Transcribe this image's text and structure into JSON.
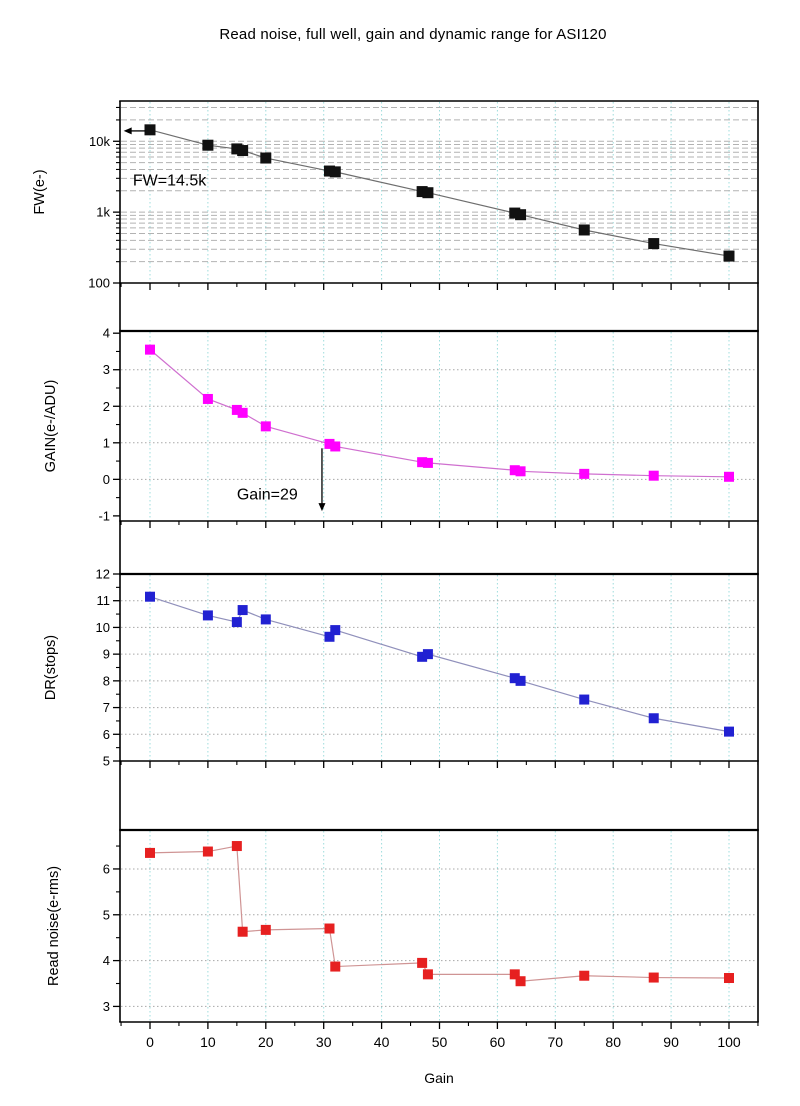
{
  "title": "Read noise, full well, gain and dynamic range for ASI120",
  "chart_data": {
    "type": "line",
    "xlabel": "Gain",
    "x_range": [
      -5.18,
      105.0
    ],
    "x_ticks": [
      0,
      10,
      20,
      30,
      40,
      50,
      60,
      70,
      80,
      90,
      100
    ],
    "x_tick_labels": [
      "0",
      "10",
      "20",
      "30",
      "40",
      "50",
      "60",
      "70",
      "80",
      "90",
      "100"
    ],
    "x_minor_ticks": [
      -5,
      5,
      15,
      25,
      35,
      45,
      55,
      65,
      75,
      85,
      95,
      105
    ],
    "x": [
      0,
      10,
      15,
      16,
      20,
      31,
      32,
      47,
      48,
      63,
      64,
      75,
      87,
      100
    ],
    "grid_v_color": "#9ddcdc",
    "panels": [
      {
        "id": "fw",
        "ylabel": "FW(e-)",
        "scale": "log",
        "y_range": [
          100,
          37000
        ],
        "y_ticks": [
          100,
          1000,
          10000
        ],
        "y_tick_labels": [
          "100",
          "1k",
          "10k"
        ],
        "y_minor_ticks": [
          200,
          300,
          400,
          500,
          600,
          700,
          800,
          900,
          2000,
          3000,
          4000,
          5000,
          6000,
          7000,
          8000,
          9000,
          20000,
          30000
        ],
        "h_grid": [
          200,
          300,
          400,
          500,
          600,
          700,
          800,
          900,
          1000,
          2000,
          3000,
          4000,
          5000,
          6000,
          7000,
          8000,
          9000,
          10000,
          20000,
          30000
        ],
        "h_grid_style": "dashed",
        "h_grid_color": "#b2b2b2",
        "series": {
          "name": "Full well (e-)",
          "marker_color": "#111111",
          "line_color": "#6e6e6e",
          "marker_size": 11,
          "values": [
            14500,
            8800,
            7800,
            7400,
            5800,
            3800,
            3700,
            1950,
            1880,
            970,
            920,
            560,
            360,
            240
          ]
        },
        "annotation": {
          "text": "FW=14.5k",
          "text_at_gain": -2.95,
          "text_at_value": 2800,
          "arrow": {
            "kind": "left",
            "at_value": 14000,
            "from_gain": -0.8,
            "to_gain": -4.55
          }
        }
      },
      {
        "id": "gain",
        "ylabel": "GAIN(e-/ADU)",
        "scale": "linear",
        "y_range": [
          -1.14,
          4.06
        ],
        "y_ticks": [
          -1,
          0,
          1,
          2,
          3,
          4
        ],
        "y_tick_labels": [
          "-1",
          "0",
          "1",
          "2",
          "3",
          "4"
        ],
        "y_minor_ticks": [
          -0.5,
          0.5,
          1.5,
          2.5,
          3.5
        ],
        "h_grid": [
          0,
          1,
          2,
          3
        ],
        "h_grid_style": "dotted",
        "h_grid_color": "#a8a8a8",
        "series": {
          "name": "Gain (e-/ADU)",
          "marker_color": "#ff00ff",
          "line_color": "#cf6fcf",
          "marker_size": 10,
          "values": [
            3.55,
            2.2,
            1.9,
            1.82,
            1.45,
            0.97,
            0.9,
            0.47,
            0.45,
            0.25,
            0.22,
            0.15,
            0.1,
            0.07
          ]
        },
        "annotation": {
          "text": "Gain=29",
          "text_at_gain": 15.0,
          "text_at_value": -0.42,
          "arrow": {
            "kind": "down",
            "at_gain": 29.7,
            "from_value": 0.85,
            "to_value": -0.87
          }
        }
      },
      {
        "id": "dr",
        "ylabel": "DR(stops)",
        "scale": "linear",
        "y_range": [
          5,
          12
        ],
        "y_ticks": [
          5,
          6,
          7,
          8,
          9,
          10,
          11,
          12
        ],
        "y_tick_labels": [
          "5",
          "6",
          "7",
          "8",
          "9",
          "10",
          "11",
          "12"
        ],
        "y_minor_ticks": [
          5.5,
          6.5,
          7.5,
          8.5,
          9.5,
          10.5,
          11.5
        ],
        "h_grid": [
          6,
          7,
          8,
          9,
          10,
          11
        ],
        "h_grid_style": "dotted",
        "h_grid_color": "#a8a8a8",
        "series": {
          "name": "Dynamic range (stops)",
          "marker_color": "#2121d2",
          "line_color": "#9090bb",
          "marker_size": 10,
          "values": [
            11.15,
            10.45,
            10.2,
            10.65,
            10.3,
            9.65,
            9.9,
            8.9,
            9.0,
            8.1,
            8.0,
            7.3,
            6.6,
            6.1
          ]
        },
        "annotation": null
      },
      {
        "id": "readnoise",
        "ylabel": "Read noise(e-rms)",
        "scale": "linear",
        "y_range": [
          2.66,
          6.85
        ],
        "y_ticks": [
          3,
          4,
          5,
          6
        ],
        "y_tick_labels": [
          "3",
          "4",
          "5",
          "6"
        ],
        "y_minor_ticks": [
          3.5,
          4.5,
          5.5,
          6.5
        ],
        "h_grid": [
          3,
          4,
          5,
          6
        ],
        "h_grid_style": "dotted",
        "h_grid_color": "#a8a8a8",
        "series": {
          "name": "Read noise (e-rms)",
          "marker_color": "#e62020",
          "line_color": "#cf9494",
          "marker_size": 10,
          "values": [
            6.35,
            6.38,
            6.5,
            4.63,
            4.67,
            4.7,
            3.87,
            3.95,
            3.7,
            3.7,
            3.55,
            3.67,
            3.63,
            3.62
          ]
        },
        "annotation": null
      }
    ]
  }
}
